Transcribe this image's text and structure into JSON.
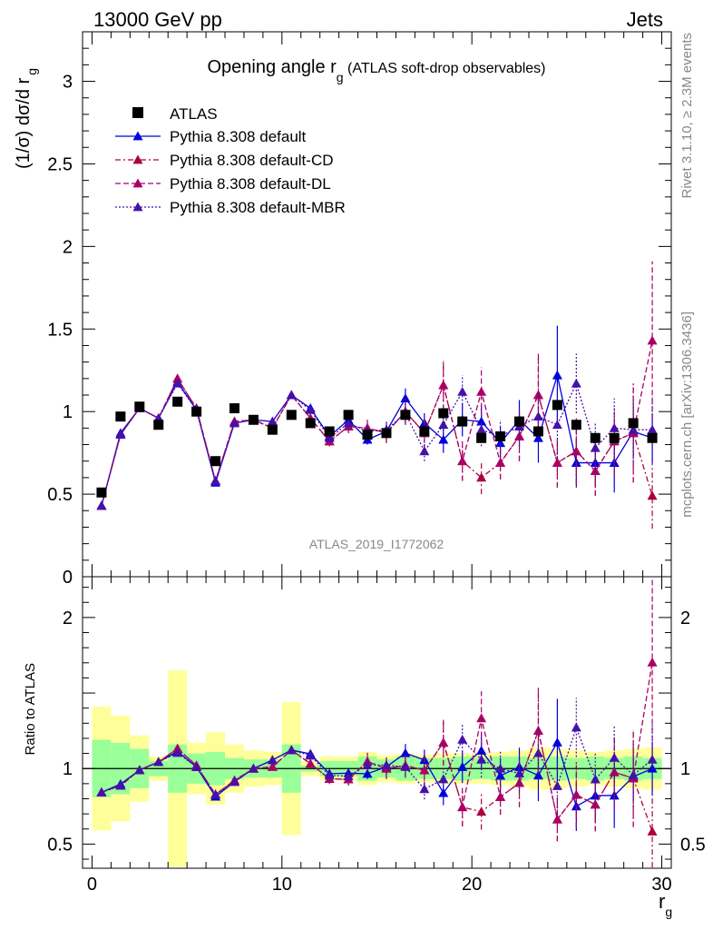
{
  "header": {
    "beam": "13000 GeV pp",
    "category": "Jets"
  },
  "side": {
    "rivet": "Rivet 3.1.10, ≥ 2.3M events",
    "mcplots": "mcplots.cern.ch [arXiv:1306.3436]"
  },
  "chart_data": {
    "type": "line",
    "title": "Opening angle r",
    "title_sub": "g",
    "title_extra": "(ATLAS soft-drop observables)",
    "analysis": "ATLAS_2019_I1772062",
    "ylabel": "(1/σ) dσ/d r",
    "ylabel_sub": "g",
    "xlabel": "r",
    "xlabel_sub": "g",
    "ratio_ylabel": "Ratio to ATLAS",
    "xlim": [
      -0.5,
      30.5
    ],
    "ylim_main": [
      0,
      3.3
    ],
    "ylim_ratio": [
      0.34,
      2.27
    ],
    "x_ticks": [
      0,
      10,
      20,
      30
    ],
    "main_y_ticks": [
      0,
      0.5,
      1,
      1.5,
      2,
      2.5,
      3
    ],
    "ratio_y_ticks": [
      0.5,
      1,
      2
    ],
    "x": [
      0.5,
      1.5,
      2.5,
      3.5,
      4.5,
      5.5,
      6.5,
      7.5,
      8.5,
      9.5,
      10.5,
      11.5,
      12.5,
      13.5,
      14.5,
      15.5,
      16.5,
      17.5,
      18.5,
      19.5,
      20.5,
      21.5,
      22.5,
      23.5,
      24.5,
      25.5,
      26.5,
      27.5,
      28.5,
      29.5
    ],
    "data": {
      "name": "ATLAS",
      "values": [
        0.51,
        0.97,
        1.03,
        0.92,
        1.06,
        1.0,
        0.7,
        1.02,
        0.95,
        0.89,
        0.98,
        0.93,
        0.88,
        0.98,
        0.86,
        0.87,
        0.98,
        0.88,
        0.99,
        0.94,
        0.84,
        0.85,
        0.94,
        0.88,
        1.04,
        0.92,
        0.84,
        0.84,
        0.93,
        0.84
      ]
    },
    "band": {
      "green": [
        0.19,
        0.17,
        0.13,
        0.05,
        0.16,
        0.1,
        0.11,
        0.07,
        0.06,
        0.06,
        0.16,
        0.02,
        0.05,
        0.05,
        0.08,
        0.06,
        0.08,
        0.07,
        0.07,
        0.08,
        0.07,
        0.08,
        0.08,
        0.07,
        0.08,
        0.07,
        0.08,
        0.07,
        0.08,
        0.07
      ],
      "yellow": [
        0.41,
        0.35,
        0.22,
        0.08,
        0.65,
        0.17,
        0.24,
        0.16,
        0.12,
        0.11,
        0.44,
        0.05,
        0.08,
        0.08,
        0.11,
        0.09,
        0.1,
        0.09,
        0.1,
        0.1,
        0.1,
        0.11,
        0.12,
        0.14,
        0.13,
        0.12,
        0.11,
        0.12,
        0.13,
        0.14
      ]
    },
    "series": [
      {
        "name": "Pythia 8.308 default",
        "color": "#0000dd",
        "dash": "",
        "values": [
          0.43,
          0.87,
          1.02,
          0.96,
          1.18,
          1.01,
          0.57,
          0.93,
          0.95,
          0.94,
          1.1,
          1.02,
          0.85,
          0.95,
          0.83,
          0.88,
          1.08,
          0.93,
          0.83,
          0.95,
          0.94,
          0.81,
          0.95,
          0.84,
          1.22,
          0.69,
          0.69,
          0.69,
          0.88,
          0.84
        ],
        "errors": [
          0.01,
          0.01,
          0.01,
          0.01,
          0.01,
          0.01,
          0.01,
          0.01,
          0.01,
          0.01,
          0.01,
          0.02,
          0.02,
          0.03,
          0.03,
          0.04,
          0.06,
          0.06,
          0.08,
          0.1,
          0.1,
          0.1,
          0.12,
          0.15,
          0.3,
          0.15,
          0.15,
          0.18,
          0.15,
          0.15
        ]
      },
      {
        "name": "Pythia 8.308 default-CD",
        "color": "#aa0044",
        "dash": "6,3,2,3",
        "values": [
          0.43,
          0.86,
          1.02,
          0.96,
          1.2,
          1.02,
          0.58,
          0.94,
          0.95,
          0.9,
          1.1,
          0.96,
          0.82,
          0.91,
          0.9,
          0.87,
          1.0,
          0.87,
          1.16,
          0.7,
          0.6,
          0.69,
          0.85,
          1.1,
          0.69,
          0.76,
          0.64,
          0.82,
          0.87,
          0.49
        ],
        "errors": [
          0.01,
          0.01,
          0.01,
          0.01,
          0.01,
          0.01,
          0.01,
          0.01,
          0.01,
          0.01,
          0.01,
          0.02,
          0.03,
          0.04,
          0.05,
          0.06,
          0.08,
          0.1,
          0.15,
          0.12,
          0.1,
          0.1,
          0.15,
          0.25,
          0.15,
          0.2,
          0.15,
          0.2,
          0.3,
          0.2
        ]
      },
      {
        "name": "Pythia 8.308 default-DL",
        "color": "#aa0066",
        "dash": "6,3",
        "values": [
          0.43,
          0.86,
          1.02,
          0.96,
          1.2,
          1.02,
          0.58,
          0.94,
          0.95,
          0.9,
          1.1,
          0.96,
          0.82,
          0.91,
          0.9,
          0.87,
          1.0,
          0.87,
          1.16,
          0.7,
          1.12,
          0.69,
          0.85,
          1.1,
          0.69,
          0.76,
          0.64,
          0.82,
          0.87,
          1.43
        ],
        "errors": [
          0.01,
          0.01,
          0.01,
          0.01,
          0.01,
          0.01,
          0.01,
          0.01,
          0.01,
          0.01,
          0.01,
          0.02,
          0.03,
          0.04,
          0.05,
          0.06,
          0.08,
          0.1,
          0.15,
          0.12,
          0.15,
          0.1,
          0.15,
          0.25,
          0.15,
          0.2,
          0.15,
          0.2,
          0.3,
          0.48
        ]
      },
      {
        "name": "Pythia 8.308 default-MBR",
        "color": "#4411aa",
        "dash": "2,2",
        "values": [
          0.43,
          0.86,
          1.02,
          0.96,
          1.17,
          1.01,
          0.58,
          0.93,
          0.95,
          0.94,
          1.1,
          1.01,
          0.84,
          0.93,
          0.88,
          0.89,
          0.99,
          0.76,
          0.92,
          1.12,
          0.89,
          0.85,
          0.91,
          0.97,
          0.92,
          1.17,
          0.78,
          0.9,
          0.89,
          0.89
        ],
        "errors": [
          0.01,
          0.01,
          0.01,
          0.01,
          0.01,
          0.01,
          0.01,
          0.01,
          0.01,
          0.01,
          0.01,
          0.02,
          0.02,
          0.03,
          0.04,
          0.05,
          0.06,
          0.06,
          0.08,
          0.1,
          0.1,
          0.1,
          0.12,
          0.15,
          0.2,
          0.18,
          0.15,
          0.18,
          0.2,
          0.2
        ]
      }
    ]
  }
}
